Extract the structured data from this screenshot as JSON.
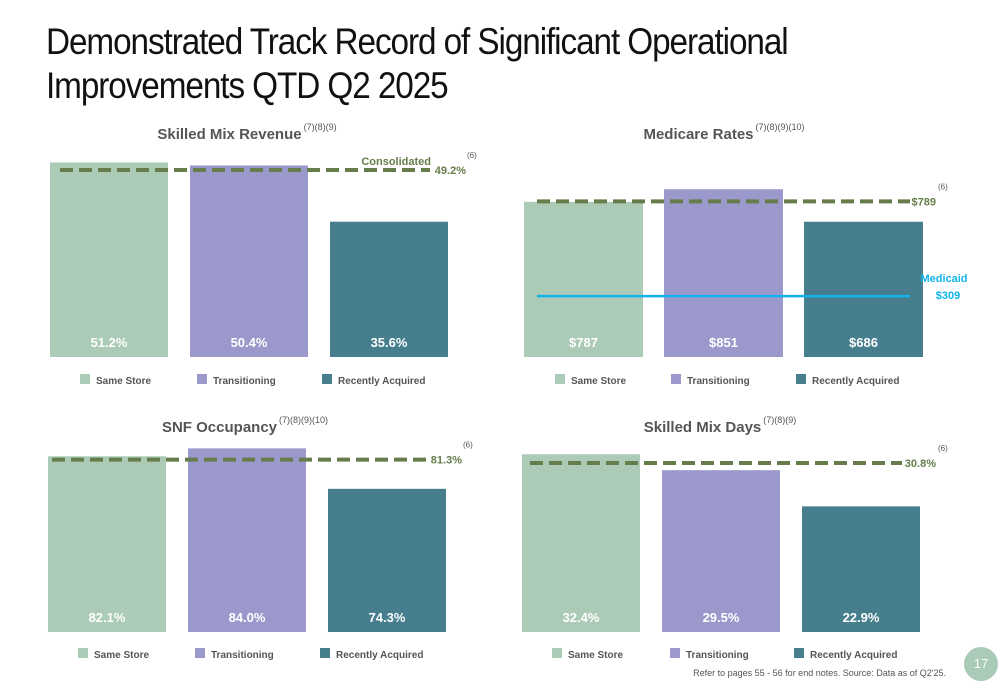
{
  "title": "Demonstrated Track Record of Significant Operational Improvements QTD Q2 2025",
  "colors": {
    "same_store": "#abcbb7",
    "transitioning": "#9b98cc",
    "recently_acquired": "#477e8e",
    "dashed_line": "#667c4b",
    "medicaid_line": "#11b4ea",
    "label_text": "#ffffff",
    "legend_text": "#555555"
  },
  "legend": [
    "Same Store",
    "Transitioning",
    "Recently Acquired"
  ],
  "chart_data": [
    {
      "type": "bar",
      "title": "Skilled Mix Revenue",
      "title_notes": "(7)(8)(9)",
      "categories": [
        "Same Store",
        "Transitioning",
        "Recently Acquired"
      ],
      "values": [
        51.2,
        50.4,
        35.6
      ],
      "value_labels": [
        "51.2%",
        "50.4%",
        "35.6%"
      ],
      "ylim": [
        0,
        55
      ],
      "reference_lines": [
        {
          "name": "Consolidated",
          "value": 49.2,
          "label": "Consolidated",
          "value_label": "49.2%",
          "note": "(6)",
          "style": "dashed"
        }
      ]
    },
    {
      "type": "bar",
      "title": "Medicare Rates",
      "title_notes": "(7)(8)(9)(10)",
      "categories": [
        "Same Store",
        "Transitioning",
        "Recently Acquired"
      ],
      "values": [
        787,
        851,
        686
      ],
      "value_labels": [
        "$787",
        "$851",
        "$686"
      ],
      "ylim": [
        0,
        1060
      ],
      "reference_lines": [
        {
          "name": "Consolidated",
          "value": 789,
          "label": "",
          "value_label": "$789",
          "note": "(6)",
          "style": "dashed"
        },
        {
          "name": "Medicaid",
          "value": 309,
          "label": "Medicaid",
          "value_label": "$309",
          "note": "",
          "style": "solid"
        }
      ]
    },
    {
      "type": "bar",
      "title": "SNF Occupancy",
      "title_notes": "(7)(8)(9)(10)",
      "categories": [
        "Same Store",
        "Transitioning",
        "Recently Acquired"
      ],
      "values": [
        82.1,
        84.0,
        74.3
      ],
      "value_labels": [
        "82.1%",
        "84.0%",
        "74.3%"
      ],
      "ylim": [
        40,
        86
      ],
      "reference_lines": [
        {
          "name": "Consolidated",
          "value": 81.3,
          "label": "",
          "value_label": "81.3%",
          "note": "(6)",
          "style": "dashed"
        }
      ]
    },
    {
      "type": "bar",
      "title": "Skilled Mix Days",
      "title_notes": "(7)(8)(9)",
      "categories": [
        "Same Store",
        "Transitioning",
        "Recently Acquired"
      ],
      "values": [
        32.4,
        29.5,
        22.9
      ],
      "value_labels": [
        "32.4%",
        "29.5%",
        "22.9%"
      ],
      "ylim": [
        0,
        35
      ],
      "reference_lines": [
        {
          "name": "Consolidated",
          "value": 30.8,
          "label": "",
          "value_label": "30.8%",
          "note": "(6)",
          "style": "dashed"
        }
      ]
    }
  ],
  "footnote": "Refer to pages 55 - 56 for end notes. Source: Data as of Q2'25.",
  "page_number": "17"
}
